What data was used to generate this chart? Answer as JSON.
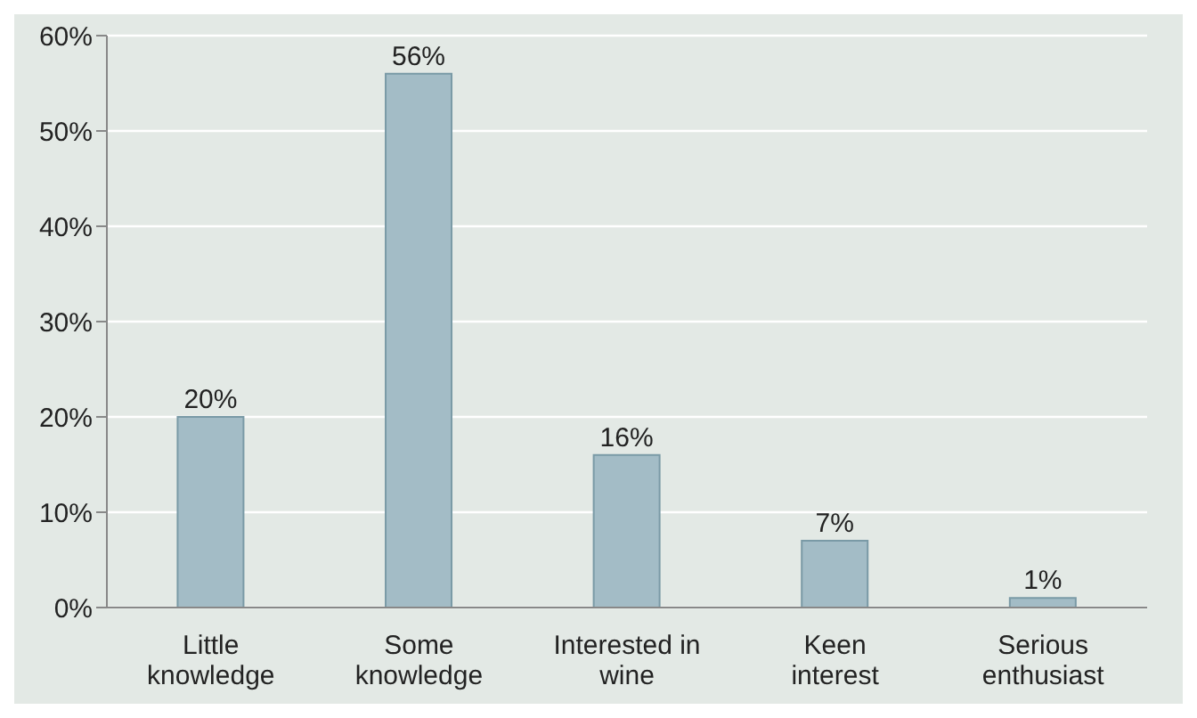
{
  "chart_data": {
    "type": "bar",
    "categories": [
      "Little knowledge",
      "Some knowledge",
      "Interested in wine",
      "Keen interest",
      "Serious enthusiast"
    ],
    "values": [
      20,
      56,
      16,
      7,
      1
    ],
    "value_labels": [
      "20%",
      "56%",
      "16%",
      "7%",
      "1%"
    ],
    "color": "#a3bcc6",
    "ylim": [
      0,
      60
    ],
    "yticks": [
      {
        "value": 0,
        "label": "0%"
      },
      {
        "value": 10,
        "label": "10%"
      },
      {
        "value": 20,
        "label": "20%"
      },
      {
        "value": 30,
        "label": "30%"
      },
      {
        "value": 40,
        "label": "40%"
      },
      {
        "value": 50,
        "label": "50%"
      },
      {
        "value": 60,
        "label": "60%"
      }
    ],
    "grid": "y"
  }
}
